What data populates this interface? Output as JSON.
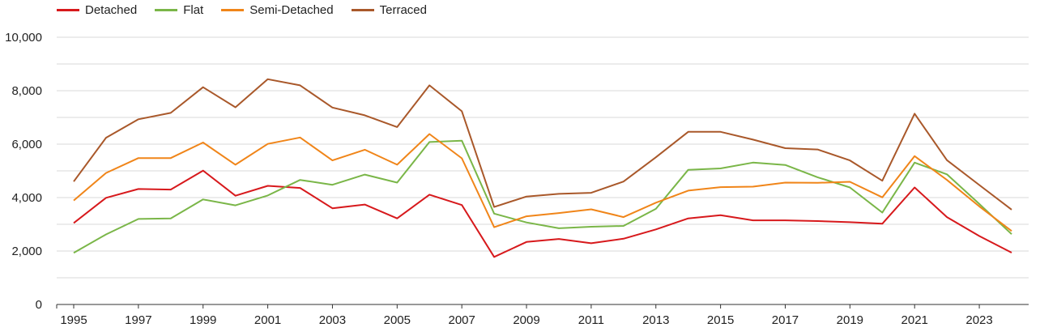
{
  "chart_data": {
    "type": "line",
    "title": "",
    "xlabel": "",
    "ylabel": "",
    "x": [
      1995,
      1996,
      1997,
      1998,
      1999,
      2000,
      2001,
      2002,
      2003,
      2004,
      2005,
      2006,
      2007,
      2008,
      2009,
      2010,
      2011,
      2012,
      2013,
      2014,
      2015,
      2016,
      2017,
      2018,
      2019,
      2020,
      2021,
      2022,
      2023,
      2024
    ],
    "x_tick_labels": [
      "1995",
      "1997",
      "1999",
      "2001",
      "2003",
      "2005",
      "2007",
      "2009",
      "2011",
      "2013",
      "2015",
      "2017",
      "2019",
      "2021",
      "2023"
    ],
    "y_tick_labels": [
      "0",
      "2,000",
      "4,000",
      "6,000",
      "8,000",
      "10,000"
    ],
    "ylim": [
      0,
      10000
    ],
    "grid": true,
    "legend_position": "top-left",
    "series": [
      {
        "name": "Detached",
        "color": "#d7191c",
        "values": [
          3050,
          3990,
          4320,
          4300,
          5010,
          4070,
          4440,
          4360,
          3600,
          3740,
          3220,
          4110,
          3720,
          1780,
          2340,
          2450,
          2290,
          2460,
          2810,
          3220,
          3340,
          3150,
          3150,
          3120,
          3080,
          3020,
          4380,
          3270,
          2560,
          1940
        ]
      },
      {
        "name": "Flat",
        "color": "#7ab648",
        "values": [
          1930,
          2620,
          3200,
          3220,
          3930,
          3710,
          4080,
          4660,
          4480,
          4860,
          4560,
          6080,
          6130,
          3400,
          3070,
          2850,
          2910,
          2940,
          3580,
          5040,
          5090,
          5310,
          5220,
          4760,
          4380,
          3440,
          5310,
          4870,
          3760,
          2630
        ]
      },
      {
        "name": "Semi-Detached",
        "color": "#f08519",
        "values": [
          3890,
          4920,
          5480,
          5480,
          6060,
          5230,
          6010,
          6250,
          5390,
          5790,
          5230,
          6380,
          5470,
          2890,
          3300,
          3420,
          3560,
          3270,
          3810,
          4260,
          4390,
          4410,
          4560,
          4550,
          4590,
          4010,
          5550,
          4660,
          3670,
          2750
        ]
      },
      {
        "name": "Terraced",
        "color": "#a9582a",
        "values": [
          4600,
          6240,
          6930,
          7170,
          8130,
          7380,
          8430,
          8200,
          7370,
          7080,
          6640,
          8200,
          7230,
          3650,
          4040,
          4140,
          4180,
          4600,
          5510,
          6460,
          6460,
          6170,
          5850,
          5800,
          5390,
          4630,
          7140,
          5400,
          4470,
          3550
        ]
      }
    ]
  }
}
